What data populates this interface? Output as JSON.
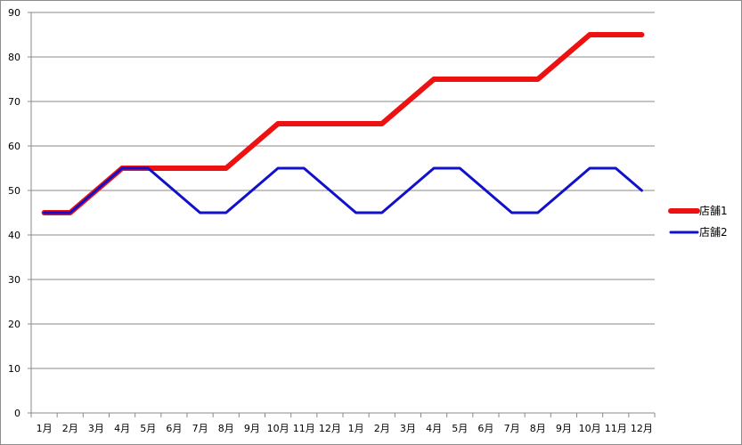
{
  "chart_data": {
    "type": "line",
    "categories": [
      "1月",
      "2月",
      "3月",
      "4月",
      "5月",
      "6月",
      "7月",
      "8月",
      "9月",
      "10月",
      "11月",
      "12月",
      "1月",
      "2月",
      "3月",
      "4月",
      "5月",
      "6月",
      "7月",
      "8月",
      "9月",
      "10月",
      "11月",
      "12月"
    ],
    "series": [
      {
        "name": "店舗1",
        "color": "#ee1111",
        "values": [
          45,
          45,
          50,
          55,
          55,
          55,
          55,
          55,
          60,
          65,
          65,
          65,
          65,
          65,
          70,
          75,
          75,
          75,
          75,
          75,
          80,
          85,
          85,
          85
        ]
      },
      {
        "name": "店舗2",
        "color": "#1111cc",
        "values": [
          45,
          45,
          50,
          55,
          55,
          50,
          45,
          45,
          50,
          55,
          55,
          50,
          45,
          45,
          50,
          55,
          55,
          50,
          45,
          45,
          50,
          55,
          55,
          50
        ]
      }
    ],
    "ylim": [
      0,
      90
    ],
    "yticks": [
      0,
      10,
      20,
      30,
      40,
      50,
      60,
      70,
      80,
      90
    ],
    "grid": true,
    "legend_position": "right"
  }
}
